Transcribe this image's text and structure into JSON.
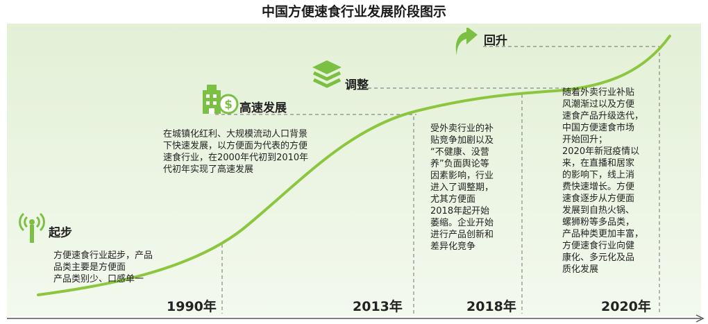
{
  "title": "中国方便速食行业发展阶段图示",
  "corner_text": "",
  "stages": [
    {
      "label": "起步",
      "year": "1990年",
      "icon": "signal-tower-icon",
      "desc": [
        "方便速食行业起步，产品",
        "品类主要是方便面",
        "产品类别少、口感单一"
      ]
    },
    {
      "label": "高速发展",
      "year": "2013年",
      "icon": "money-building-icon",
      "desc": [
        "在城镇化红利、大规模流动人口背景",
        "下快速发展，以方便面为代表的方便",
        "速食行业，在2000年代初到2010年",
        "代初年实现了高速发展"
      ]
    },
    {
      "label": "调整",
      "year": "2018年",
      "icon": "layers-icon",
      "desc": [
        "受外卖行业的补",
        "贴竞争加剧以及",
        "“不健康、没营",
        "养”负面舆论等",
        "因素影响，行业",
        "进入了调整期，",
        "尤其方便面",
        "2018年起开始",
        "萎缩。企业开始",
        "进行产品创新和",
        "差异化竞争"
      ]
    },
    {
      "label": "回升",
      "year": "2020年",
      "icon": "arrow-up-icon",
      "desc": [
        "随着外卖行业补贴",
        "风潮渐过以及方便",
        "速食产品升级迭代，",
        "中国方便速食市场",
        "开始回升；",
        "2020年新冠疫情以",
        "来，在直播和居家",
        "的影响下，线上消",
        "费快速增长。方便",
        "速食逐步从方便面",
        "发展到自热火锅、",
        "螺狮粉等多品类，",
        "产品种类更加丰富，",
        "方便速食行业向健",
        "康化、多元化及品",
        "质化发展"
      ]
    }
  ],
  "colors": {
    "background_band": "#eaf4e2",
    "curve": "#8cc63f",
    "icon": "#7bc043",
    "dash": "#888888",
    "axis": "#555555"
  }
}
